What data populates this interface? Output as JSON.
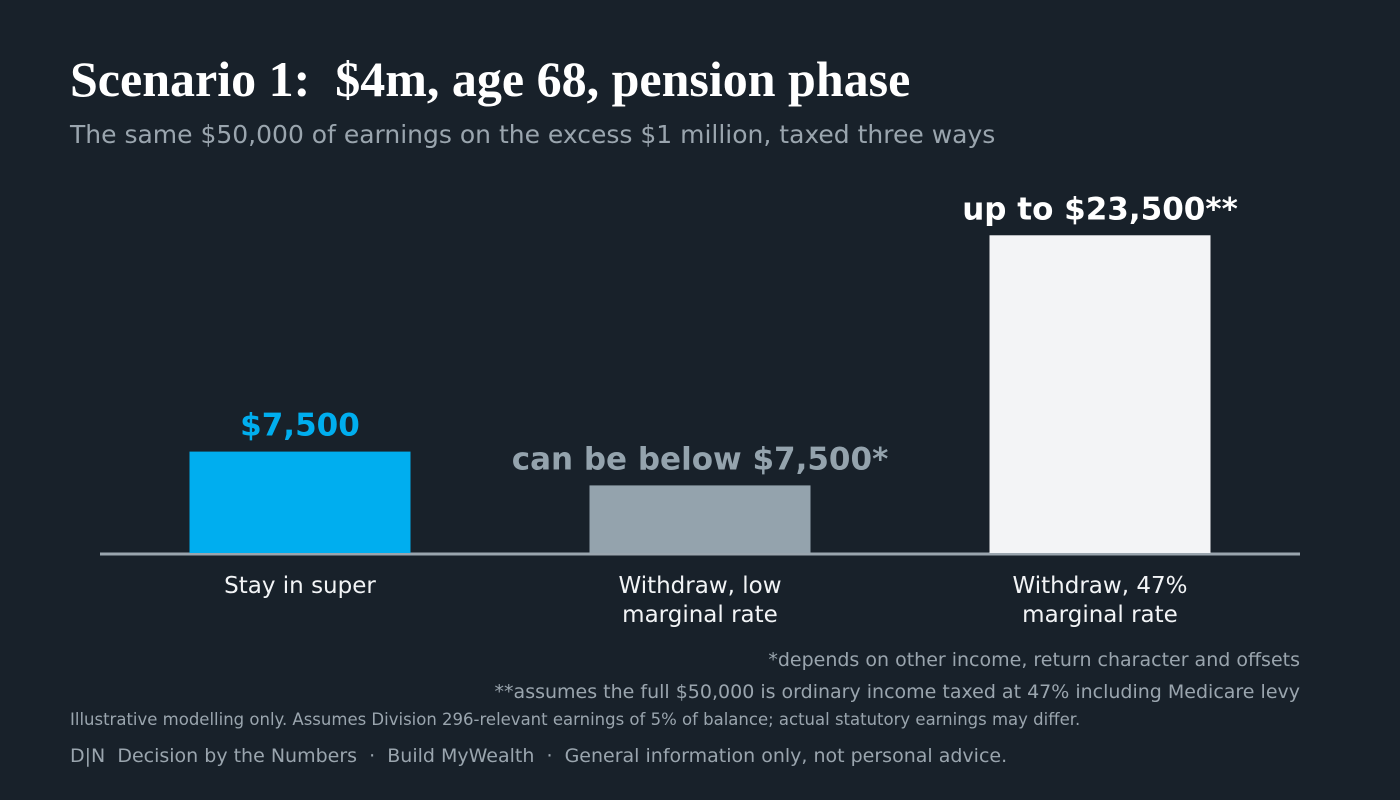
{
  "chart_data": {
    "type": "bar",
    "title": "Scenario 1:  $4m, age 68, pension phase",
    "subtitle": "The same $50,000 of earnings on the excess $1 million, taxed three ways",
    "categories": [
      "Stay in super",
      "Withdraw, low marginal rate",
      "Withdraw, 47% marginal rate"
    ],
    "values": [
      7500,
      5000,
      23500
    ],
    "value_labels": [
      "$7,500",
      "can be below $7,500*",
      "up to $23,500**"
    ],
    "colors": [
      "#00aeef",
      "#94a3ad",
      "#f3f4f6"
    ],
    "label_colors": [
      "#00aeef",
      "#94a3ad",
      "#ffffff"
    ],
    "ylim": [
      0,
      25000
    ],
    "footnotes": [
      "*depends on other income, return character and offsets",
      "**assumes the full $50,000 is ordinary income taxed at 47% including Medicare levy"
    ],
    "disclaimer": "Illustrative modelling only. Assumes Division 296-relevant earnings of 5% of balance; actual statutory earnings may differ.",
    "footer": "D|N  Decision by the Numbers  ·  Build MyWealth  ·  General information only, not personal advice."
  }
}
